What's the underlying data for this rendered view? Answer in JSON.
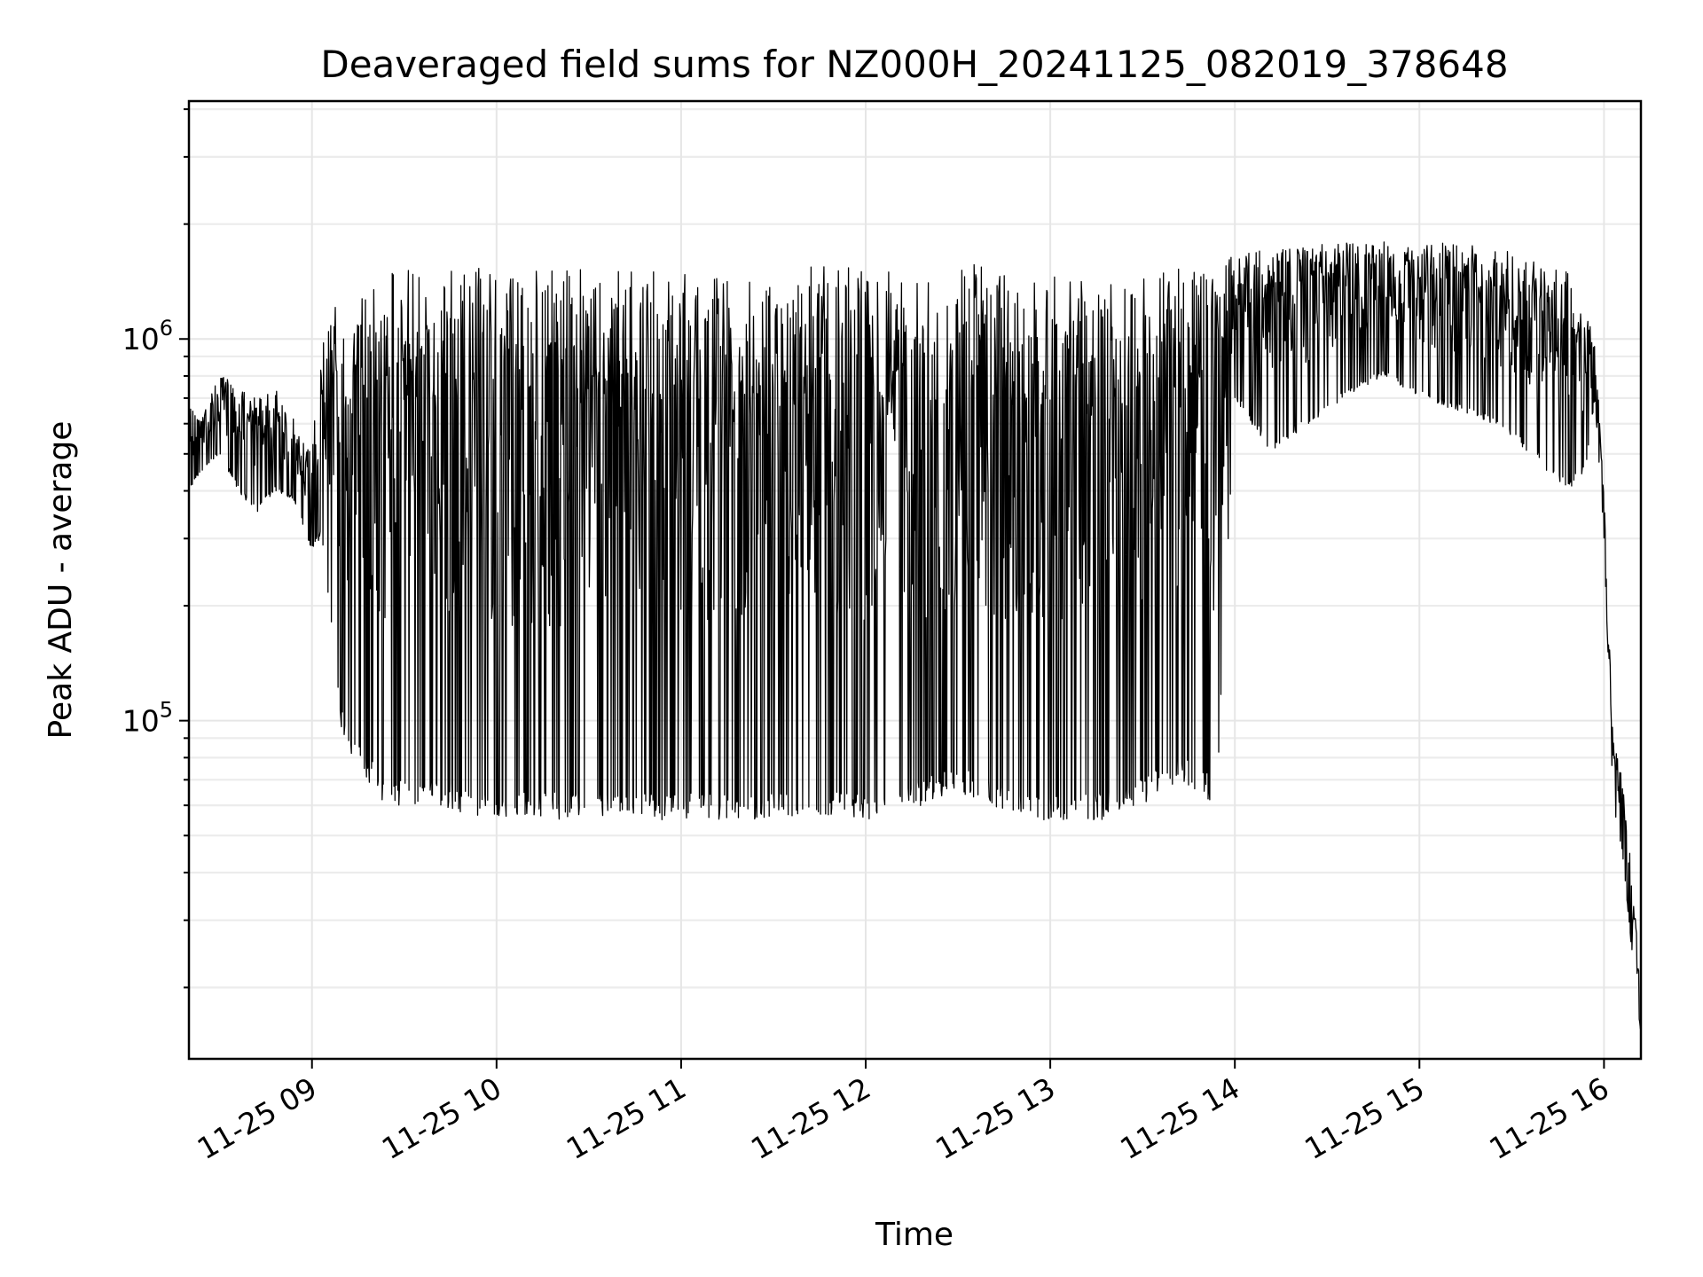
{
  "chart_data": {
    "type": "line",
    "title": "Deaveraged field sums for NZ000H_20241125_082019_378648",
    "xlabel": "Time",
    "ylabel": "Peak ADU - average",
    "yscale": "log",
    "xlim": [
      "2024-11-25 08:20",
      "2024-11-25 16:12"
    ],
    "ylim": [
      13000,
      4200000
    ],
    "grid": true,
    "legend": "none",
    "x_ticks": [
      "11-25 09",
      "11-25 10",
      "11-25 11",
      "11-25 12",
      "11-25 13",
      "11-25 14",
      "11-25 15",
      "11-25 16"
    ],
    "x_tick_hours": [
      9,
      10,
      11,
      12,
      13,
      14,
      15,
      16
    ],
    "y_ticks": [
      {
        "base": "10",
        "exp": "5",
        "value": 100000
      },
      {
        "base": "10",
        "exp": "6",
        "value": 1000000
      }
    ],
    "line_color": "#000000",
    "series": [
      {
        "time_hours": [
          8.333,
          8.4,
          8.5,
          8.6,
          8.7,
          8.8,
          8.9,
          9.0,
          9.05,
          9.1,
          9.15,
          9.2,
          9.3,
          9.4,
          9.5,
          9.7,
          9.9,
          10.0,
          10.5,
          11.0,
          11.5,
          12.0,
          12.3,
          12.5,
          12.8,
          13.0,
          13.3,
          13.5,
          13.7,
          13.9,
          14.0,
          14.2,
          14.4,
          14.6,
          14.8,
          15.0,
          15.2,
          15.4,
          15.6,
          15.8,
          15.9,
          15.95,
          16.0,
          16.05,
          16.1,
          16.15,
          16.2
        ],
        "envelope_upper": [
          680000,
          650000,
          800000,
          780000,
          700000,
          750000,
          620000,
          500000,
          1100000,
          1300000,
          1350000,
          1400000,
          1450000,
          1500000,
          1550000,
          1550000,
          1550000,
          1550000,
          1550000,
          1550000,
          1550000,
          1550000,
          1450000,
          1600000,
          1500000,
          1500000,
          1400000,
          1450000,
          1550000,
          1500000,
          1700000,
          1700000,
          1750000,
          1800000,
          1800000,
          1750000,
          1800000,
          1750000,
          1650000,
          1500000,
          1200000,
          1000000,
          400000,
          90000,
          70000,
          40000,
          20000
        ],
        "envelope_lower": [
          400000,
          450000,
          500000,
          400000,
          350000,
          400000,
          380000,
          280000,
          300000,
          180000,
          100000,
          80000,
          70000,
          60000,
          60000,
          60000,
          55000,
          55000,
          55000,
          55000,
          55000,
          55000,
          60000,
          65000,
          55000,
          55000,
          55000,
          60000,
          70000,
          60000,
          700000,
          500000,
          600000,
          700000,
          800000,
          700000,
          650000,
          600000,
          500000,
          400000,
          450000,
          700000,
          300000,
          60000,
          45000,
          25000,
          15000
        ]
      }
    ]
  }
}
